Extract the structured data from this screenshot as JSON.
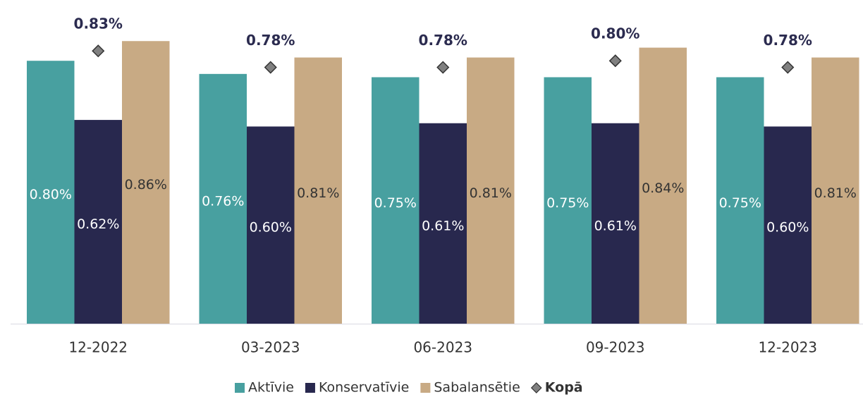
{
  "chart_data": {
    "type": "bar",
    "categories": [
      "12-2022",
      "03-2023",
      "06-2023",
      "09-2023",
      "12-2023"
    ],
    "series": [
      {
        "name": "Aktīvie",
        "color": "#48a0a0",
        "values": [
          0.8,
          0.76,
          0.75,
          0.75,
          0.75
        ],
        "value_labels": [
          "0.80%",
          "0.76%",
          "0.75%",
          "0.75%",
          "0.75%"
        ]
      },
      {
        "name": "Konservatīvie",
        "color": "#28284e",
        "values": [
          0.62,
          0.6,
          0.61,
          0.61,
          0.6
        ],
        "value_labels": [
          "0.62%",
          "0.60%",
          "0.61%",
          "0.61%",
          "0.60%"
        ]
      },
      {
        "name": "Sabalansētie",
        "color": "#c8aa84",
        "values": [
          0.86,
          0.81,
          0.81,
          0.84,
          0.81
        ],
        "value_labels": [
          "0.86%",
          "0.81%",
          "0.81%",
          "0.84%",
          "0.81%"
        ]
      },
      {
        "name": "Kopā",
        "type": "marker",
        "color": "#808080",
        "values": [
          0.83,
          0.78,
          0.78,
          0.8,
          0.78
        ],
        "value_labels": [
          "0.83%",
          "0.78%",
          "0.78%",
          "0.80%",
          "0.78%"
        ]
      }
    ],
    "ylim": [
      0,
      0.985
    ]
  }
}
